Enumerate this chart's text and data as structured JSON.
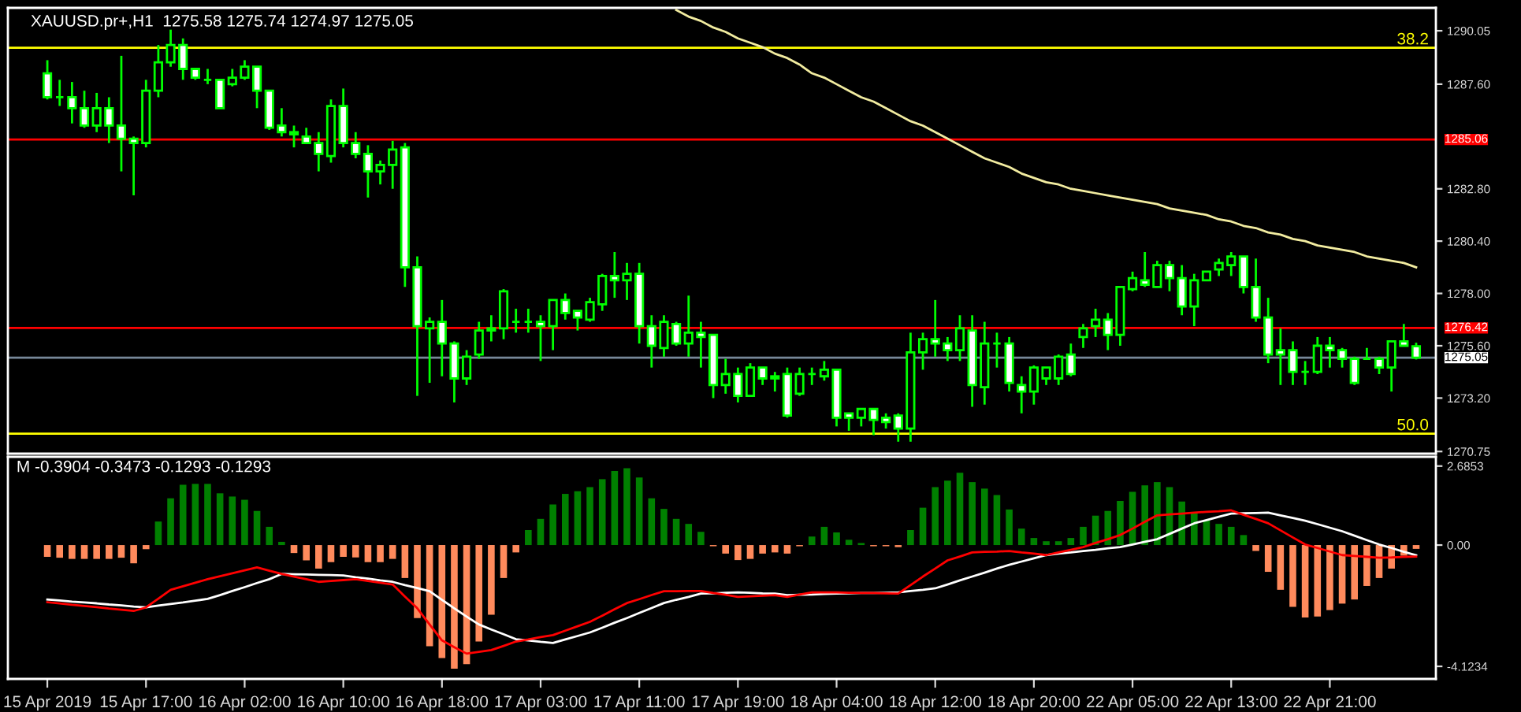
{
  "chart_data": [
    {
      "type": "candlestick",
      "title": "XAUUSD.pr+,H1  1275.58 1275.74 1274.97 1275.05",
      "tick_labels": "y",
      "categories": [
        null,
        null,
        null,
        null,
        null,
        null,
        null,
        null,
        null,
        null,
        null,
        null,
        null,
        null,
        null,
        null,
        null,
        null,
        null,
        null,
        null,
        null,
        null,
        null,
        null,
        null,
        null,
        null,
        null,
        null,
        null,
        null,
        null,
        null,
        null,
        null,
        null,
        null,
        null,
        null,
        null,
        null,
        null,
        null,
        null,
        null,
        null,
        null,
        null,
        null,
        null,
        null,
        null,
        null,
        null,
        null,
        null,
        null,
        null,
        null,
        null,
        null,
        null,
        null,
        null,
        null,
        null,
        null,
        null,
        null,
        null,
        null,
        null,
        null,
        null,
        null,
        null,
        null,
        null,
        null,
        null,
        null,
        null,
        null,
        null,
        null,
        null,
        null,
        null,
        null,
        null,
        null,
        null,
        null,
        null,
        null,
        null,
        null,
        null,
        null,
        null,
        null,
        null,
        null,
        null,
        null,
        null,
        null,
        null,
        null,
        null,
        null
      ],
      "color": "#00ff00",
      "ohlc": [
        [
          1288.1,
          1288.7,
          1286.9,
          1287.0
        ],
        [
          1287.0,
          1287.8,
          1286.6,
          1287.0
        ],
        [
          1287.0,
          1287.7,
          1285.8,
          1286.5
        ],
        [
          1286.5,
          1287.3,
          1285.6,
          1285.7
        ],
        [
          1285.7,
          1287.2,
          1285.4,
          1286.5
        ],
        [
          1286.5,
          1287.0,
          1284.9,
          1285.7
        ],
        [
          1285.7,
          1288.9,
          1283.6,
          1285.1
        ],
        [
          1285.1,
          1285.2,
          1282.5,
          1284.9
        ],
        [
          1284.9,
          1287.8,
          1284.7,
          1287.3
        ],
        [
          1287.3,
          1289.4,
          1287.0,
          1288.6
        ],
        [
          1288.6,
          1290.1,
          1288.4,
          1289.4
        ],
        [
          1289.4,
          1289.7,
          1287.8,
          1288.3
        ],
        [
          1288.3,
          1288.3,
          1287.8,
          1287.9
        ],
        [
          1287.8,
          1288.3,
          1287.6,
          1287.8
        ],
        [
          1287.8,
          1287.8,
          1286.5,
          1286.5
        ],
        [
          1287.6,
          1288.3,
          1287.5,
          1287.9
        ],
        [
          1287.9,
          1288.7,
          1287.8,
          1288.4
        ],
        [
          1288.4,
          1288.4,
          1286.5,
          1287.3
        ],
        [
          1287.3,
          1287.3,
          1285.5,
          1285.6
        ],
        [
          1285.7,
          1286.5,
          1285.2,
          1285.4
        ],
        [
          1285.4,
          1285.7,
          1284.7,
          1285.3
        ],
        [
          1285.2,
          1285.6,
          1284.9,
          1284.9
        ],
        [
          1284.9,
          1285.4,
          1283.6,
          1284.4
        ],
        [
          1284.3,
          1286.9,
          1284.0,
          1286.6
        ],
        [
          1286.6,
          1287.4,
          1284.7,
          1284.9
        ],
        [
          1284.9,
          1285.4,
          1284.2,
          1284.4
        ],
        [
          1284.4,
          1284.8,
          1282.4,
          1283.6
        ],
        [
          1283.6,
          1284.1,
          1283.0,
          1283.9
        ],
        [
          1283.9,
          1285.0,
          1282.8,
          1284.6
        ],
        [
          1284.7,
          1284.9,
          1278.3,
          1279.2
        ],
        [
          1279.2,
          1279.7,
          1273.3,
          1276.5
        ],
        [
          1276.4,
          1276.9,
          1273.9,
          1276.7
        ],
        [
          1276.7,
          1277.7,
          1274.2,
          1275.7
        ],
        [
          1275.7,
          1275.8,
          1273.0,
          1274.1
        ],
        [
          1274.1,
          1275.4,
          1273.8,
          1275.1
        ],
        [
          1275.2,
          1276.7,
          1275.0,
          1276.3
        ],
        [
          1276.3,
          1277.0,
          1275.8,
          1276.4
        ],
        [
          1276.4,
          1278.2,
          1275.9,
          1278.1
        ],
        [
          1276.7,
          1277.3,
          1276.2,
          1276.7
        ],
        [
          1276.7,
          1277.3,
          1276.2,
          1276.7
        ],
        [
          1276.7,
          1277.0,
          1274.9,
          1276.5
        ],
        [
          1276.5,
          1277.7,
          1275.4,
          1277.7
        ],
        [
          1277.7,
          1278.0,
          1276.8,
          1277.1
        ],
        [
          1277.2,
          1277.2,
          1276.3,
          1276.9
        ],
        [
          1276.8,
          1277.8,
          1276.7,
          1277.6
        ],
        [
          1277.5,
          1278.9,
          1277.2,
          1278.8
        ],
        [
          1278.8,
          1279.9,
          1277.8,
          1278.6
        ],
        [
          1278.6,
          1279.4,
          1277.7,
          1278.9
        ],
        [
          1278.9,
          1279.4,
          1275.7,
          1276.5
        ],
        [
          1276.5,
          1277.0,
          1274.6,
          1275.6
        ],
        [
          1275.5,
          1277.0,
          1275.1,
          1276.7
        ],
        [
          1276.6,
          1276.7,
          1275.6,
          1275.7
        ],
        [
          1275.7,
          1277.9,
          1275.1,
          1276.2
        ],
        [
          1276.2,
          1276.7,
          1274.6,
          1276.0
        ],
        [
          1276.1,
          1276.1,
          1273.2,
          1273.8
        ],
        [
          1273.8,
          1275.0,
          1273.4,
          1274.3
        ],
        [
          1274.3,
          1274.6,
          1273.0,
          1273.3
        ],
        [
          1273.3,
          1274.8,
          1273.3,
          1274.6
        ],
        [
          1274.6,
          1274.6,
          1273.8,
          1274.1
        ],
        [
          1274.2,
          1274.4,
          1273.5,
          1274.1
        ],
        [
          1274.3,
          1274.6,
          1272.3,
          1272.4
        ],
        [
          1273.4,
          1274.6,
          1273.3,
          1274.3
        ],
        [
          1274.3,
          1274.6,
          1273.8,
          1274.3
        ],
        [
          1274.2,
          1274.9,
          1274.0,
          1274.5
        ],
        [
          1274.5,
          1274.5,
          1271.9,
          1272.3
        ],
        [
          1272.5,
          1272.5,
          1271.7,
          1272.3
        ],
        [
          1272.3,
          1272.7,
          1271.9,
          1272.7
        ],
        [
          1272.7,
          1272.7,
          1271.5,
          1272.2
        ],
        [
          1272.3,
          1272.5,
          1271.8,
          1272.1
        ],
        [
          1272.4,
          1272.5,
          1271.2,
          1271.8
        ],
        [
          1271.8,
          1276.2,
          1271.2,
          1275.3
        ],
        [
          1275.3,
          1276.2,
          1274.5,
          1275.9
        ],
        [
          1275.9,
          1277.7,
          1275.1,
          1275.7
        ],
        [
          1275.7,
          1276.0,
          1274.9,
          1275.4
        ],
        [
          1275.4,
          1277.0,
          1274.9,
          1276.4
        ],
        [
          1276.3,
          1277.0,
          1272.8,
          1273.8
        ],
        [
          1273.7,
          1276.7,
          1272.9,
          1275.7
        ],
        [
          1275.7,
          1276.2,
          1274.6,
          1275.7
        ],
        [
          1275.7,
          1276.0,
          1273.5,
          1273.9
        ],
        [
          1273.8,
          1274.2,
          1272.5,
          1273.5
        ],
        [
          1273.5,
          1274.7,
          1272.9,
          1274.6
        ],
        [
          1274.1,
          1274.6,
          1273.8,
          1274.6
        ],
        [
          1274.1,
          1275.2,
          1273.8,
          1275.1
        ],
        [
          1275.2,
          1275.7,
          1274.2,
          1274.3
        ],
        [
          1276.0,
          1276.6,
          1275.5,
          1276.4
        ],
        [
          1276.5,
          1277.3,
          1276.0,
          1276.8
        ],
        [
          1276.8,
          1277.1,
          1275.4,
          1276.1
        ],
        [
          1276.1,
          1278.3,
          1275.6,
          1278.3
        ],
        [
          1278.2,
          1279.0,
          1278.1,
          1278.7
        ],
        [
          1278.6,
          1279.9,
          1278.3,
          1278.4
        ],
        [
          1278.3,
          1279.5,
          1278.3,
          1279.3
        ],
        [
          1279.3,
          1279.5,
          1278.1,
          1278.7
        ],
        [
          1278.7,
          1279.3,
          1277.0,
          1277.4
        ],
        [
          1277.4,
          1278.9,
          1276.5,
          1278.6
        ],
        [
          1278.6,
          1279.0,
          1278.6,
          1279.0
        ],
        [
          1279.1,
          1279.6,
          1278.8,
          1279.4
        ],
        [
          1279.3,
          1279.9,
          1278.8,
          1279.7
        ],
        [
          1279.7,
          1279.7,
          1278.0,
          1278.3
        ],
        [
          1278.3,
          1279.6,
          1276.7,
          1276.9
        ],
        [
          1276.9,
          1277.8,
          1274.8,
          1275.2
        ],
        [
          1275.4,
          1276.4,
          1273.8,
          1275.2
        ],
        [
          1275.4,
          1275.8,
          1273.8,
          1274.4
        ],
        [
          1274.4,
          1274.9,
          1273.8,
          1274.4
        ],
        [
          1274.4,
          1276.0,
          1274.3,
          1275.6
        ],
        [
          1275.6,
          1276.0,
          1274.6,
          1275.4
        ],
        [
          1275.4,
          1275.5,
          1274.6,
          1275.0
        ],
        [
          1275.0,
          1275.1,
          1273.8,
          1273.9
        ],
        [
          1275.0,
          1275.5,
          1275.0,
          1275.0
        ],
        [
          1275.0,
          1275.1,
          1274.3,
          1274.6
        ],
        [
          1274.6,
          1275.8,
          1273.5,
          1275.8
        ],
        [
          1275.8,
          1276.6,
          1275.6,
          1275.6
        ],
        [
          1275.58,
          1275.74,
          1274.97,
          1275.05
        ]
      ],
      "series": [
        {
          "type": "line",
          "color": "#f2eca0",
          "values": [
            null,
            null,
            null,
            null,
            null,
            null,
            null,
            null,
            null,
            null,
            null,
            null,
            null,
            null,
            null,
            null,
            null,
            null,
            null,
            null,
            null,
            null,
            null,
            null,
            null,
            null,
            null,
            null,
            null,
            null,
            null,
            null,
            null,
            null,
            null,
            null,
            null,
            null,
            null,
            null,
            null,
            null,
            null,
            null,
            null,
            null,
            null,
            null,
            null,
            null,
            null,
            1291.0,
            1290.7,
            1290.5,
            1290.2,
            1290.0,
            1289.7,
            1289.5,
            1289.3,
            1289.0,
            1288.8,
            1288.5,
            1288.1,
            1287.9,
            1287.6,
            1287.3,
            1287.0,
            1286.8,
            1286.5,
            1286.2,
            1285.9,
            1285.7,
            1285.4,
            1285.1,
            1284.8,
            1284.5,
            1284.2,
            1284.0,
            1283.8,
            1283.5,
            1283.3,
            1283.1,
            1283.0,
            1282.8,
            1282.7,
            1282.6,
            1282.5,
            1282.4,
            1282.3,
            1282.2,
            1282.1,
            1281.9,
            1281.8,
            1281.7,
            1281.6,
            1281.4,
            1281.3,
            1281.1,
            1281.0,
            1280.8,
            1280.7,
            1280.5,
            1280.4,
            1280.2,
            1280.1,
            1280.0,
            1279.9,
            1279.7,
            1279.6,
            1279.5,
            1279.4,
            1279.2
          ]
        }
      ],
      "ylim": [
        1270.65,
        1291.1
      ],
      "yticks": [
        1290.05,
        {
          "value": 1287.6,
          "label": "1287.60"
        },
        {
          "value": 1282.8,
          "label": "1282.80"
        },
        {
          "value": 1280.4,
          "label": "1280.40"
        },
        {
          "value": 1278.0,
          "label": "1278.00"
        },
        {
          "value": 1275.6,
          "label": "1275.60"
        },
        {
          "value": 1273.2,
          "label": "1273.20"
        },
        1270.75
      ],
      "ref_lines": [
        {
          "axis": "y",
          "value": 1289.27,
          "color": "#ffff00"
        },
        {
          "axis": "y",
          "value": 1271.57,
          "color": "#ffff00"
        },
        {
          "axis": "y",
          "value": 1285.06,
          "label": "1285.06",
          "color": "#ff0000"
        },
        {
          "axis": "y",
          "value": 1276.42,
          "label": "1276.42",
          "color": "#ff0000"
        },
        {
          "axis": "y",
          "value": 1275.05,
          "label": "1275.05",
          "color": "#778899"
        }
      ],
      "annotations": [
        {
          "text": "38.2",
          "y": 1289.27
        },
        {
          "text": "50.0",
          "y": 1271.57
        }
      ]
    },
    {
      "type": "bar",
      "title": "M -0.3904 -0.3473 -0.1293 -0.1293",
      "categories": [
        "15 Apr 2019",
        null,
        null,
        null,
        null,
        null,
        null,
        null,
        "15 Apr 17:00",
        null,
        null,
        null,
        null,
        null,
        null,
        null,
        "16 Apr 02:00",
        null,
        null,
        null,
        null,
        null,
        null,
        null,
        "16 Apr 10:00",
        null,
        null,
        null,
        null,
        null,
        null,
        null,
        "16 Apr 18:00",
        null,
        null,
        null,
        null,
        null,
        null,
        null,
        "17 Apr 03:00",
        null,
        null,
        null,
        null,
        null,
        null,
        null,
        "17 Apr 11:00",
        null,
        null,
        null,
        null,
        null,
        null,
        null,
        "17 Apr 19:00",
        null,
        null,
        null,
        null,
        null,
        null,
        null,
        "18 Apr 04:00",
        null,
        null,
        null,
        null,
        null,
        null,
        null,
        "18 Apr 12:00",
        null,
        null,
        null,
        null,
        null,
        null,
        null,
        "18 Apr 20:00",
        null,
        null,
        null,
        null,
        null,
        null,
        null,
        "22 Apr 05:00",
        null,
        null,
        null,
        null,
        null,
        null,
        null,
        "22 Apr 13:00",
        null,
        null,
        null,
        null,
        null,
        null,
        null,
        "22 Apr 21:00",
        null,
        null,
        null,
        null,
        null,
        null,
        null
      ],
      "series": [
        {
          "type": "bar",
          "color": "#008000",
          "values": [
            null,
            null,
            null,
            null,
            null,
            null,
            null,
            null,
            null,
            0.8,
            1.59,
            2.05,
            2.08,
            2.08,
            1.76,
            1.65,
            1.54,
            1.16,
            0.62,
            0.11,
            null,
            null,
            null,
            null,
            null,
            null,
            null,
            null,
            null,
            null,
            null,
            null,
            null,
            null,
            null,
            null,
            null,
            null,
            null,
            0.51,
            0.89,
            1.38,
            1.74,
            1.83,
            1.97,
            2.24,
            2.52,
            2.61,
            2.3,
            1.59,
            1.23,
            0.89,
            0.72,
            0.45,
            null,
            null,
            null,
            null,
            null,
            null,
            null,
            null,
            0.29,
            0.62,
            0.43,
            0.18,
            0.07,
            null,
            null,
            null,
            0.51,
            1.27,
            1.97,
            2.19,
            2.46,
            2.14,
            1.92,
            1.7,
            1.21,
            0.56,
            0.24,
            0.13,
            0.13,
            0.24,
            0.62,
            1.0,
            1.16,
            1.5,
            1.81,
            2.03,
            2.14,
            1.97,
            1.48,
            1.1,
            0.83,
            0.72,
            0.62,
            0.34,
            null,
            null,
            null,
            null,
            null,
            null,
            null,
            null,
            null,
            null,
            null,
            null,
            null,
            null
          ]
        },
        {
          "type": "bar",
          "color": "#ff8a5c",
          "values": [
            -0.4,
            -0.43,
            -0.47,
            -0.47,
            -0.47,
            -0.47,
            -0.43,
            -0.62,
            -0.14,
            null,
            null,
            null,
            null,
            null,
            null,
            null,
            null,
            null,
            null,
            null,
            -0.27,
            -0.52,
            -0.8,
            -0.58,
            -0.4,
            -0.42,
            -0.58,
            -0.58,
            -0.47,
            -1.12,
            -2.48,
            -3.44,
            -3.84,
            -4.2,
            -4.05,
            -3.28,
            -2.37,
            -1.12,
            -0.25,
            null,
            null,
            null,
            null,
            null,
            null,
            null,
            null,
            null,
            null,
            null,
            null,
            null,
            null,
            null,
            -0.04,
            -0.29,
            -0.51,
            -0.47,
            -0.29,
            -0.25,
            -0.29,
            -0.04,
            null,
            null,
            null,
            null,
            null,
            -0.04,
            -0.04,
            -0.07,
            null,
            null,
            null,
            null,
            null,
            null,
            null,
            null,
            null,
            null,
            null,
            null,
            null,
            null,
            null,
            null,
            null,
            null,
            null,
            null,
            null,
            null,
            null,
            null,
            null,
            null,
            null,
            null,
            -0.2,
            -0.91,
            -1.52,
            -2.1,
            -2.46,
            -2.43,
            -2.21,
            -1.99,
            -1.85,
            -1.39,
            -1.12,
            -0.8,
            -0.36,
            -0.1293
          ]
        },
        {
          "type": "line",
          "color": "#ffffff",
          "values": [
            -1.85,
            -1.88,
            -1.92,
            -1.95,
            -1.98,
            -2.02,
            -2.05,
            -2.09,
            -2.12,
            -2.06,
            -2.0,
            -1.95,
            -1.89,
            -1.83,
            -1.7,
            -1.56,
            -1.43,
            -1.29,
            -1.16,
            -0.98,
            -0.99,
            -1.0,
            -1.01,
            -1.02,
            -1.03,
            -1.09,
            -1.14,
            -1.2,
            -1.25,
            -1.36,
            -1.46,
            -1.57,
            -1.86,
            -2.15,
            -2.43,
            -2.7,
            -2.87,
            -3.03,
            -3.2,
            -3.24,
            -3.29,
            -3.33,
            -3.21,
            -3.09,
            -2.97,
            -2.81,
            -2.64,
            -2.48,
            -2.31,
            -2.14,
            -1.97,
            -1.86,
            -1.76,
            -1.65,
            -1.64,
            -1.62,
            -1.61,
            -1.62,
            -1.64,
            -1.65,
            -1.7,
            -1.69,
            -1.68,
            -1.66,
            -1.65,
            -1.64,
            -1.63,
            -1.63,
            -1.62,
            -1.61,
            -1.56,
            -1.52,
            -1.47,
            -1.34,
            -1.2,
            -1.07,
            -0.94,
            -0.8,
            -0.67,
            -0.56,
            -0.45,
            -0.34,
            -0.29,
            -0.25,
            -0.2,
            -0.16,
            -0.11,
            -0.07,
            0.02,
            0.11,
            0.2,
            0.38,
            0.56,
            0.74,
            0.85,
            0.96,
            1.07,
            1.08,
            1.09,
            1.1,
            1.01,
            0.92,
            0.83,
            0.71,
            0.59,
            0.47,
            0.32,
            0.17,
            0.02,
            -0.1,
            -0.23,
            -0.3473
          ]
        },
        {
          "type": "line",
          "color": "#ff0000",
          "values": [
            -1.94,
            -1.98,
            -2.03,
            -2.07,
            -2.11,
            -2.16,
            -2.2,
            -2.24,
            -2.12,
            -1.82,
            -1.52,
            -1.4,
            -1.28,
            -1.16,
            -1.06,
            -0.96,
            -0.86,
            -0.76,
            -0.87,
            -0.98,
            -1.07,
            -1.16,
            -1.25,
            -1.22,
            -1.19,
            -1.16,
            -1.22,
            -1.28,
            -1.34,
            -1.75,
            -2.15,
            -2.7,
            -3.24,
            -3.47,
            -3.69,
            -3.63,
            -3.57,
            -3.43,
            -3.28,
            -3.21,
            -3.13,
            -3.06,
            -2.91,
            -2.76,
            -2.61,
            -2.4,
            -2.18,
            -1.97,
            -1.84,
            -1.7,
            -1.57,
            -1.57,
            -1.56,
            -1.56,
            -1.63,
            -1.69,
            -1.76,
            -1.74,
            -1.72,
            -1.7,
            -1.76,
            -1.68,
            -1.61,
            -1.61,
            -1.61,
            -1.62,
            -1.63,
            -1.63,
            -1.64,
            -1.65,
            -1.36,
            -1.07,
            -0.8,
            -0.52,
            -0.39,
            -0.25,
            -0.23,
            -0.22,
            -0.2,
            -0.25,
            -0.29,
            -0.34,
            -0.25,
            -0.16,
            -0.07,
            0.07,
            0.2,
            0.34,
            0.56,
            0.79,
            1.01,
            1.04,
            1.07,
            1.1,
            1.13,
            1.15,
            1.18,
            1.03,
            0.89,
            0.74,
            0.5,
            0.26,
            0.02,
            -0.1,
            -0.22,
            -0.34,
            -0.37,
            -0.4,
            -0.43,
            -0.42,
            -0.4,
            -0.3904
          ]
        }
      ],
      "ylim": [
        -4.55,
        3.0
      ],
      "yticks": [
        2.6853,
        {
          "value": 0,
          "label": "0.00"
        },
        -4.1234
      ]
    }
  ]
}
